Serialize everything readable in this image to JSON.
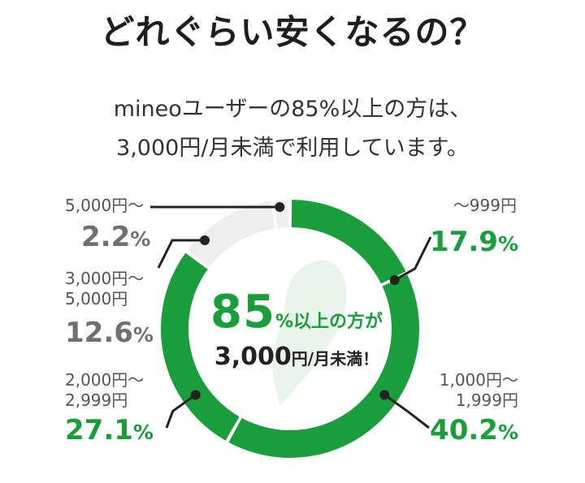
{
  "title": "どれぐらい安くなるの？",
  "lead": {
    "line1": "mineoユーザーの85%以上の方は、",
    "line2": "3,000円/月未満で利用しています。"
  },
  "center": {
    "big": "85",
    "small": "%以上の方が",
    "line2_value": "3,000",
    "line2_suffix": "円/月未満！"
  },
  "colors": {
    "green": "#1a9e3c",
    "gray_segment": "#eeeeee",
    "text_gray": "#707070"
  },
  "chart_data": {
    "type": "pie",
    "style": "donut",
    "slices": [
      {
        "label": "〜999円",
        "value": 17.9,
        "value_text": "17.9",
        "unit": "%",
        "highlight": true
      },
      {
        "label": "1,000円〜 1,999円",
        "label_line1": "1,000円〜",
        "label_line2": "1,999円",
        "value": 40.2,
        "value_text": "40.2",
        "unit": "%",
        "highlight": true
      },
      {
        "label": "2,000円〜 2,999円",
        "label_line1": "2,000円〜",
        "label_line2": "2,999円",
        "value": 27.1,
        "value_text": "27.1",
        "unit": "%",
        "highlight": true
      },
      {
        "label": "3,000円〜 5,000円",
        "label_line1": "3,000円〜",
        "label_line2": "5,000円",
        "value": 12.6,
        "value_text": "12.6",
        "unit": "%",
        "highlight": false
      },
      {
        "label": "5,000円〜",
        "value": 2.2,
        "value_text": "2.2",
        "unit": "%",
        "highlight": false
      }
    ]
  }
}
